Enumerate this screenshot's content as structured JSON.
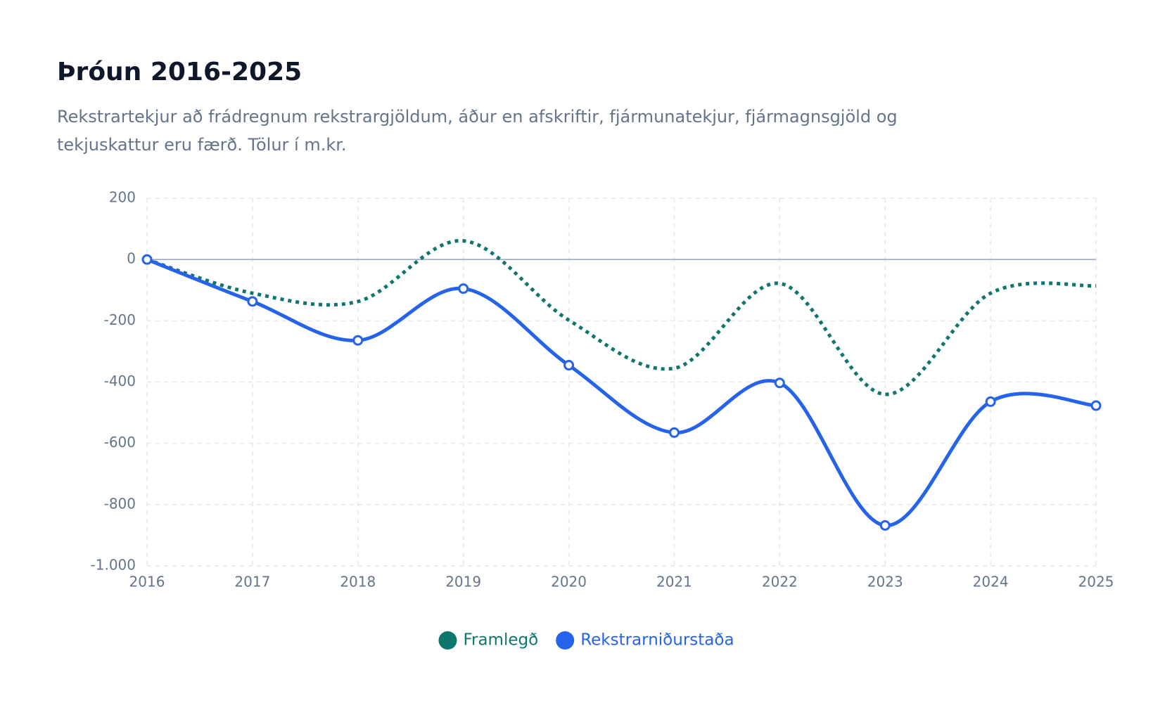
{
  "chart_data": {
    "type": "line",
    "title": "Þróun 2016-2025",
    "subtitle": "Rekstrartekjur að frádregnum rekstrargjöldum, áður en afskriftir, fjármunatekjur, fjármagnsgjöld og tekjuskattur eru færð. Tölur í m.kr.",
    "categories": [
      "2016",
      "2017",
      "2018",
      "2019",
      "2020",
      "2021",
      "2022",
      "2023",
      "2024",
      "2025"
    ],
    "series": [
      {
        "name": "Framlegð",
        "color": "#0f766e",
        "dashed": true,
        "markers": false,
        "values": [
          0,
          -110,
          -137,
          61,
          -198,
          -355,
          -78,
          -440,
          -110,
          -86
        ]
      },
      {
        "name": "Rekstrarniðurstaða",
        "color": "#2563eb",
        "dashed": false,
        "markers": true,
        "values": [
          0,
          -137,
          -264,
          -95,
          -345,
          -565,
          -403,
          -868,
          -464,
          -477
        ]
      }
    ],
    "ylim": [
      -1000,
      200
    ],
    "yticks": [
      {
        "value": -1000,
        "label": "-1.000"
      },
      -800,
      -600,
      -400,
      -200,
      0,
      200
    ],
    "grid": true,
    "legend": "bottom"
  }
}
